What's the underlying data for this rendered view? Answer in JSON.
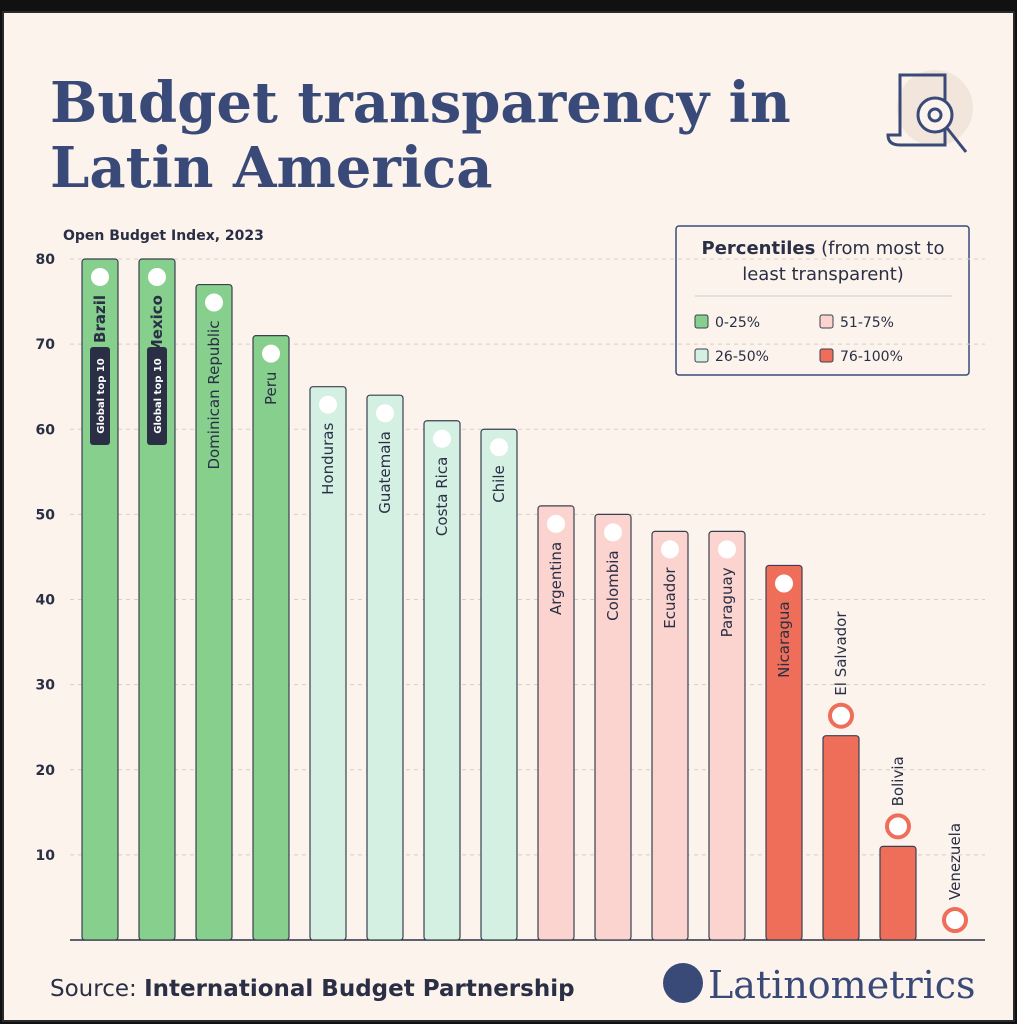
{
  "chart_data": {
    "type": "bar",
    "title": [
      "Budget transparency in",
      "Latin America"
    ],
    "subtitle": "Open Budget Index, 2023",
    "categories": [
      "Brazil",
      "Mexico",
      "Dominican Republic",
      "Peru",
      "Honduras",
      "Guatemala",
      "Costa Rica",
      "Chile",
      "Argentina",
      "Colombia",
      "Ecuador",
      "Paraguay",
      "Nicaragua",
      "El Salvador",
      "Bolivia",
      "Venezuela"
    ],
    "values": [
      80,
      80,
      77,
      71,
      65,
      64,
      61,
      60,
      51,
      50,
      48,
      48,
      44,
      24,
      11,
      0
    ],
    "colors": [
      "#86cf8c",
      "#86cf8c",
      "#86cf8c",
      "#86cf8c",
      "#d4f0e2",
      "#d4f0e2",
      "#d4f0e2",
      "#d4f0e2",
      "#fbd3cf",
      "#fbd3cf",
      "#fbd3cf",
      "#fbd3cf",
      "#ee6e5a",
      "#ee6e5a",
      "#ee6e5a",
      "#ee6e5a"
    ],
    "annotations": [
      {
        "category": "Brazil",
        "text": "Global top 10"
      },
      {
        "category": "Mexico",
        "text": "Global top 10"
      }
    ],
    "ylim": [
      0,
      80
    ],
    "yticks": [
      10,
      20,
      30,
      40,
      50,
      60,
      70,
      80
    ],
    "grid": true,
    "legend_title": "Percentiles",
    "legend_subtitle": "(from most to least transparent)",
    "legend": [
      {
        "label": "0-25%",
        "color": "#86cf8c"
      },
      {
        "label": "51-75%",
        "color": "#fbd3cf"
      },
      {
        "label": "26-50%",
        "color": "#d4f0e2"
      },
      {
        "label": "76-100%",
        "color": "#ee6e5a"
      }
    ],
    "source_label": "Source:",
    "source": "International Budget Partnership",
    "brand": "Latinometrics"
  }
}
